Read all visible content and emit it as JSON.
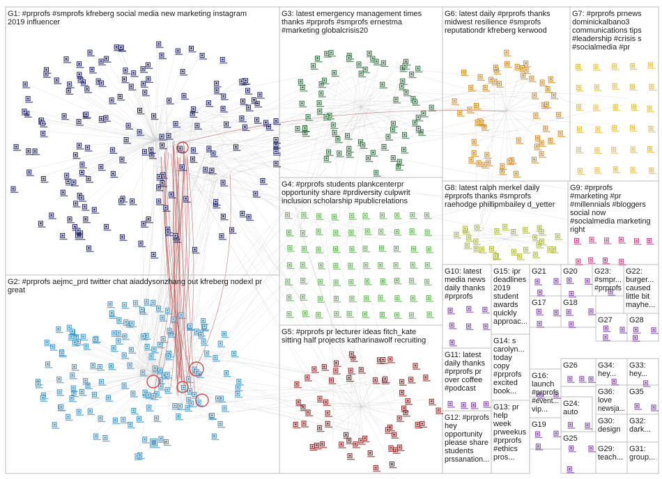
{
  "colors": {
    "G1": "#1c1f66",
    "G2": "#3a8fc7",
    "G3": "#2e6b3c",
    "G4": "#59b24a",
    "G5": "#8e1a1a",
    "G6": "#d4861b",
    "G7": "#e6b93a",
    "G8": "#aab52a",
    "G9": "#c2417a",
    "small": "#7a3fa8",
    "edge": "#c9c9c9",
    "edge_highlight": "#b23a3a",
    "border": "#bdbdbd"
  },
  "groups": [
    {
      "id": "G1",
      "lines": [
        "G1: #prprofs #smprofs kfreberg social media new marketing instagram",
        "2019 influencer"
      ]
    },
    {
      "id": "G2",
      "lines": [
        "G2: #prprofs aejmc_prd twitter chat aiaddysonzhang out kfreberg nodexl pr",
        "great"
      ]
    },
    {
      "id": "G3",
      "lines": [
        "G3: latest emergency management times",
        "thanks #prprofs #smprofs ernestma",
        "#marketing globalcrisis20"
      ]
    },
    {
      "id": "G4",
      "lines": [
        "G4: #prprofs students plankcenterpr",
        "opportunity share #prdiversity culpwrit",
        "inclusion scholarship #publicrelations"
      ]
    },
    {
      "id": "G5",
      "lines": [
        "G5: #prprofs pr lecturer ideas fitch_kate",
        "sitting half projects katharinawolf recruiting"
      ]
    },
    {
      "id": "G6",
      "lines": [
        "G6: latest daily #prprofs thanks",
        "midwest resilience #smprofs",
        "reputationdr kfreberg kerwood"
      ]
    },
    {
      "id": "G7",
      "lines": [
        "G7: #prprofs prnews",
        "dominickalbano3",
        "communications tips",
        "#leadership #crisis s",
        "#socialmedia #pr"
      ]
    },
    {
      "id": "G8",
      "lines": [
        "G8: latest ralph merkel daily",
        "#prprofs thanks #smprofs",
        "raehodge phillipmbailey d_yetter"
      ]
    },
    {
      "id": "G9",
      "lines": [
        "G9: #prprofs",
        "#marketing #pr",
        "#millennials #bloggers",
        "social now",
        "#socialmedia marketing",
        "right"
      ]
    },
    {
      "id": "G10",
      "lines": [
        "G10: latest",
        "media news",
        "daily thanks",
        "#prprofs"
      ]
    },
    {
      "id": "G11",
      "lines": [
        "G11: latest",
        "daily thanks",
        "#prprofs pr",
        "over coffee",
        "#podcast"
      ]
    },
    {
      "id": "G12",
      "lines": [
        "G12: #prprofs",
        "hey",
        "opportunity",
        "please share",
        "students",
        "prssanation..."
      ]
    },
    {
      "id": "G13",
      "lines": [
        "G13: pr",
        "help",
        "week",
        "prweekus",
        "#prprofs",
        "#ethics",
        "pros..."
      ]
    },
    {
      "id": "G14",
      "lines": [
        "G14: s",
        "carolyn...",
        "today",
        "copy",
        "#prprofs",
        "excited",
        "book..."
      ]
    },
    {
      "id": "G15",
      "lines": [
        "G15: ipr",
        "deadlines",
        "2019",
        "student",
        "awards",
        "quickly",
        "approac..."
      ]
    },
    {
      "id": "G16",
      "lines": [
        "G16:",
        "launch",
        "#prprofs",
        "#event...",
        "vip..."
      ]
    },
    {
      "id": "G17",
      "lines": [
        "G17"
      ]
    },
    {
      "id": "G18",
      "lines": [
        "G18"
      ]
    },
    {
      "id": "G19",
      "lines": [
        "G19"
      ]
    },
    {
      "id": "G20",
      "lines": [
        "G20"
      ]
    },
    {
      "id": "G21",
      "lines": [
        "G21"
      ]
    },
    {
      "id": "G22",
      "lines": [
        "G22:",
        "burger...",
        "caused",
        "little bit",
        "mayhe..."
      ]
    },
    {
      "id": "G23",
      "lines": [
        "G23:",
        "#smpr...",
        "#prprofs"
      ]
    },
    {
      "id": "G24",
      "lines": [
        "G24:",
        "auto"
      ]
    },
    {
      "id": "G25",
      "lines": [
        "G25"
      ]
    },
    {
      "id": "G26",
      "lines": [
        "G26"
      ]
    },
    {
      "id": "G27",
      "lines": [
        "G27"
      ]
    },
    {
      "id": "G28",
      "lines": [
        "G28"
      ]
    },
    {
      "id": "G29",
      "lines": [
        "G29:",
        "teach..."
      ]
    },
    {
      "id": "G30",
      "lines": [
        "G30:",
        "design"
      ]
    },
    {
      "id": "G31",
      "lines": [
        "G31:",
        "group..."
      ]
    },
    {
      "id": "G32",
      "lines": [
        "G32:",
        "dark..."
      ]
    },
    {
      "id": "G33",
      "lines": [
        "G33:",
        "hey..."
      ]
    },
    {
      "id": "G34",
      "lines": [
        "G34:",
        "hey..."
      ]
    },
    {
      "id": "G35",
      "lines": [
        "G35"
      ]
    },
    {
      "id": "G36",
      "lines": [
        "G36:",
        "love",
        "newsja..."
      ]
    }
  ]
}
